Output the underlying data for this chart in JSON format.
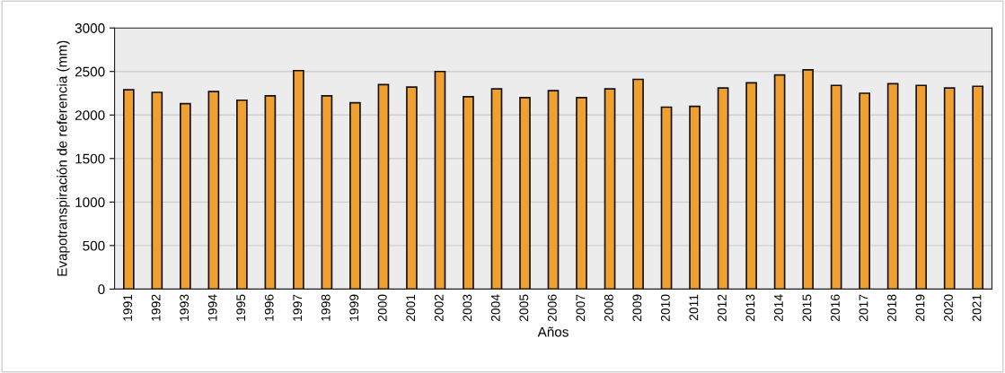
{
  "chart_data": {
    "type": "bar",
    "xlabel": "Años",
    "ylabel": "Evapotranspiración de referencia (mm)",
    "categories": [
      "1991",
      "1992",
      "1993",
      "1994",
      "1995",
      "1996",
      "1997",
      "1998",
      "1999",
      "2000",
      "2001",
      "2002",
      "2003",
      "2004",
      "2005",
      "2006",
      "2007",
      "2008",
      "2009",
      "2010",
      "2011",
      "2012",
      "2013",
      "2014",
      "2015",
      "2016",
      "2017",
      "2018",
      "2019",
      "2020",
      "2021"
    ],
    "values": [
      2290,
      2260,
      2130,
      2270,
      2170,
      2220,
      2510,
      2220,
      2140,
      2350,
      2320,
      2500,
      2210,
      2300,
      2200,
      2280,
      2200,
      2300,
      2410,
      2090,
      2100,
      2310,
      2370,
      2460,
      2520,
      2340,
      2250,
      2360,
      2340,
      2310,
      2330
    ],
    "color": "#f0a030",
    "ylim": [
      0,
      3000
    ],
    "yticks": [
      0,
      500,
      1000,
      1500,
      2000,
      2500,
      3000
    ],
    "grid": "y"
  }
}
